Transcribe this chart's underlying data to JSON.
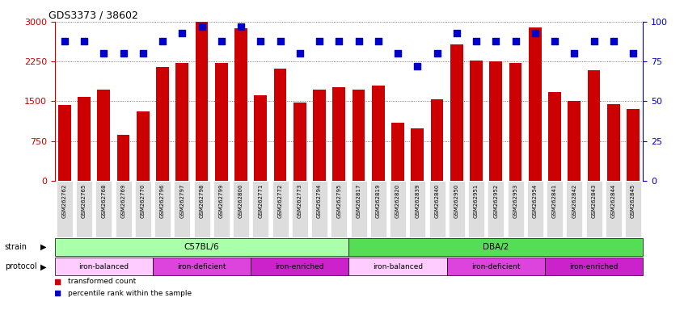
{
  "title": "GDS3373 / 38602",
  "samples": [
    "GSM262762",
    "GSM262765",
    "GSM262768",
    "GSM262769",
    "GSM262770",
    "GSM262796",
    "GSM262797",
    "GSM262798",
    "GSM262799",
    "GSM262800",
    "GSM262771",
    "GSM262772",
    "GSM262773",
    "GSM262794",
    "GSM262795",
    "GSM262817",
    "GSM262819",
    "GSM262820",
    "GSM262839",
    "GSM262840",
    "GSM262950",
    "GSM262951",
    "GSM262952",
    "GSM262953",
    "GSM262954",
    "GSM262841",
    "GSM262842",
    "GSM262843",
    "GSM262844",
    "GSM262845"
  ],
  "bar_values": [
    1430,
    1580,
    1720,
    870,
    1310,
    2150,
    2220,
    3000,
    2220,
    2870,
    1620,
    2120,
    1480,
    1720,
    1760,
    1720,
    1800,
    1100,
    990,
    1530,
    2570,
    2270,
    2250,
    2220,
    2890,
    1680,
    1510,
    2090,
    1450,
    1360
  ],
  "percentile_values": [
    88,
    88,
    80,
    80,
    80,
    88,
    93,
    97,
    88,
    97,
    88,
    88,
    80,
    88,
    88,
    88,
    88,
    80,
    72,
    80,
    93,
    88,
    88,
    88,
    93,
    88,
    80,
    88,
    88,
    80
  ],
  "bar_color": "#cc0000",
  "dot_color": "#0000cc",
  "ylim_left": [
    0,
    3000
  ],
  "ylim_right": [
    0,
    100
  ],
  "yticks_left": [
    0,
    750,
    1500,
    2250,
    3000
  ],
  "yticks_right": [
    0,
    25,
    50,
    75,
    100
  ],
  "strain_groups": [
    {
      "label": "C57BL/6",
      "start": 0,
      "end": 14,
      "color": "#aaffaa"
    },
    {
      "label": "DBA/2",
      "start": 15,
      "end": 29,
      "color": "#55dd55"
    }
  ],
  "protocol_groups": [
    {
      "label": "iron-balanced",
      "start": 0,
      "end": 4,
      "color": "#ffccff"
    },
    {
      "label": "iron-deficient",
      "start": 5,
      "end": 9,
      "color": "#ee44ee"
    },
    {
      "label": "iron-enriched",
      "start": 10,
      "end": 14,
      "color": "#dd22cc"
    },
    {
      "label": "iron-balanced",
      "start": 15,
      "end": 19,
      "color": "#ffccff"
    },
    {
      "label": "iron-deficient",
      "start": 20,
      "end": 24,
      "color": "#ee44ee"
    },
    {
      "label": "iron-enriched",
      "start": 25,
      "end": 29,
      "color": "#dd22cc"
    }
  ],
  "legend_bar_color": "#cc0000",
  "legend_dot_color": "#0000cc",
  "legend_bar_label": "transformed count",
  "legend_dot_label": "percentile rank within the sample",
  "bg_color": "#ffffff",
  "tick_label_bg": "#dddddd",
  "grid_color": "#555555",
  "left_axis_color": "#cc0000",
  "right_axis_color": "#0000cc"
}
